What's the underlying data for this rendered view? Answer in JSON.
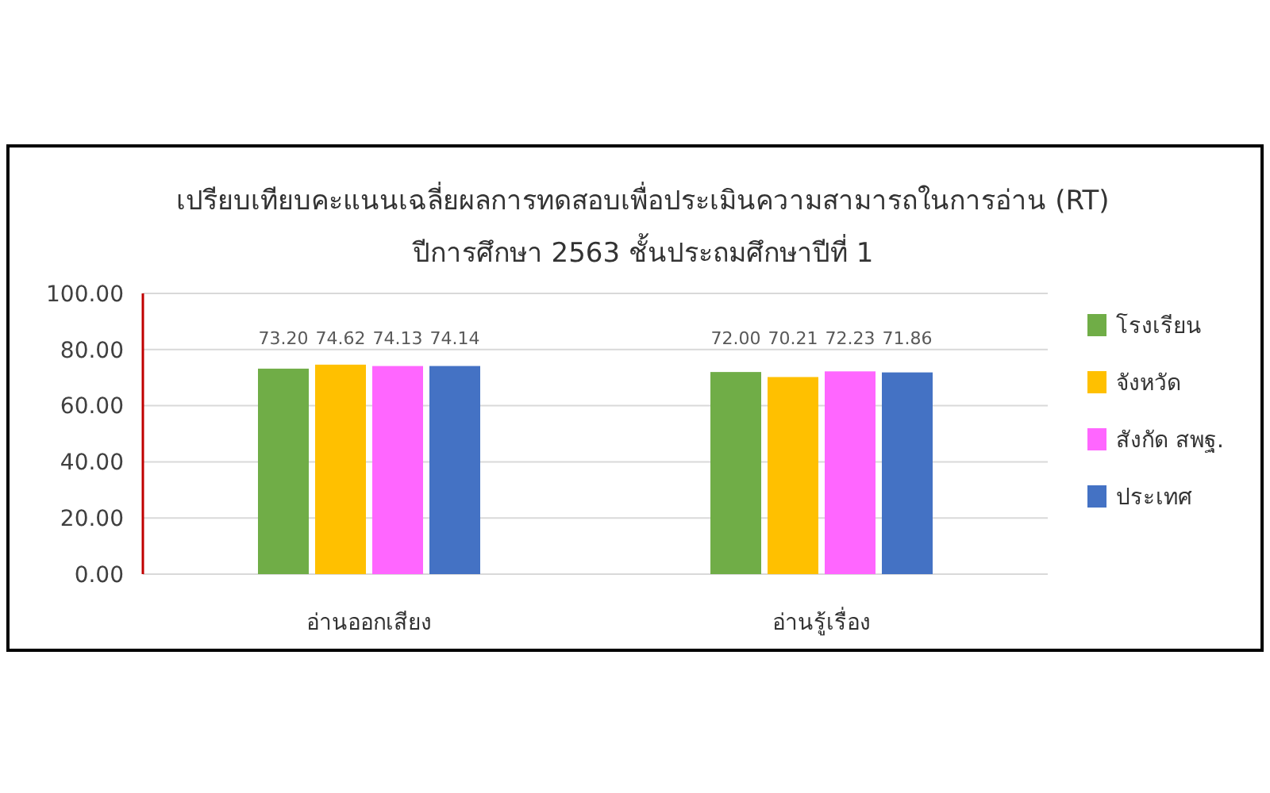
{
  "chart_data": {
    "type": "bar",
    "title": "เปรียบเทียบคะแนนเฉลี่ยผลการทดสอบเพื่อประเมินความสามารถในการอ่าน (RT)",
    "subtitle": "ปีการศึกษา 2563  ชั้นประถมศึกษาปีที่ 1",
    "categories": [
      "อ่านออกเสียง",
      "อ่านรู้เรื่อง"
    ],
    "series": [
      {
        "name": "โรงเรียน",
        "color": "#70ad47",
        "values": [
          73.2,
          72.0
        ],
        "value_labels": [
          "73.20",
          "72.00"
        ]
      },
      {
        "name": "จังหวัด",
        "color": "#ffc000",
        "values": [
          74.62,
          70.21
        ],
        "value_labels": [
          "74.62",
          "70.21"
        ]
      },
      {
        "name": "สังกัด สพฐ.",
        "color": "#ff66ff",
        "values": [
          74.13,
          72.23
        ],
        "value_labels": [
          "74.13",
          "72.23"
        ]
      },
      {
        "name": "ประเทศ",
        "color": "#4472c4",
        "values": [
          74.14,
          71.86
        ],
        "value_labels": [
          "74.14",
          "71.86"
        ]
      }
    ],
    "ylim": [
      0,
      100
    ],
    "yticks": [
      {
        "value": 0,
        "label": "0.00"
      },
      {
        "value": 20,
        "label": "20.00"
      },
      {
        "value": 40,
        "label": "40.00"
      },
      {
        "value": 60,
        "label": "60.00"
      },
      {
        "value": 80,
        "label": "80.00"
      },
      {
        "value": 100,
        "label": "100.00"
      }
    ],
    "grid": "y",
    "legend": "right"
  }
}
